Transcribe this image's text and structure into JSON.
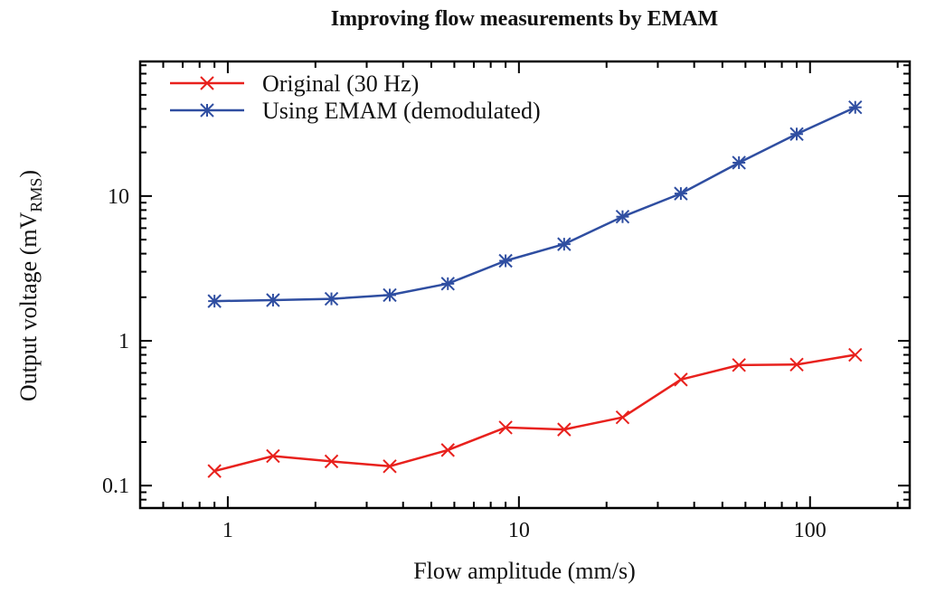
{
  "chart_data": {
    "type": "line",
    "title": "Improving flow measurements by EMAM",
    "xlabel": "Flow amplitude (mm/s)",
    "ylabel": "Output voltage (mV",
    "ylabel_subscript": "RMS",
    "ylabel_suffix": ")",
    "xscale": "log",
    "yscale": "log",
    "xlim": [
      0.5,
      220
    ],
    "ylim": [
      0.07,
      85
    ],
    "xticks": [
      {
        "value": 1,
        "label": "1"
      },
      {
        "value": 10,
        "label": "10"
      },
      {
        "value": 100,
        "label": "100"
      }
    ],
    "yticks": [
      {
        "value": 0.1,
        "label": "0.1"
      },
      {
        "value": 1,
        "label": "1"
      },
      {
        "value": 10,
        "label": "10"
      }
    ],
    "grid": false,
    "legend_position": "top-left",
    "series": [
      {
        "name": "Original (30 Hz)",
        "color": "#e8211d",
        "marker": "x",
        "x": [
          0.9,
          1.43,
          2.27,
          3.6,
          5.7,
          9.0,
          14.3,
          22.7,
          36.0,
          57.0,
          90.0,
          143.0
        ],
        "y": [
          0.126,
          0.16,
          0.147,
          0.136,
          0.176,
          0.252,
          0.244,
          0.296,
          0.54,
          0.68,
          0.685,
          0.8
        ]
      },
      {
        "name": "Using EMAM (demodulated)",
        "color": "#2f4ea1",
        "marker": "asterisk",
        "x": [
          0.9,
          1.43,
          2.27,
          3.6,
          5.7,
          9.0,
          14.3,
          22.7,
          36.0,
          57.0,
          90.0,
          143.0
        ],
        "y": [
          1.88,
          1.91,
          1.95,
          2.07,
          2.48,
          3.57,
          4.65,
          7.2,
          10.4,
          17.0,
          26.8,
          41.0
        ]
      }
    ]
  }
}
